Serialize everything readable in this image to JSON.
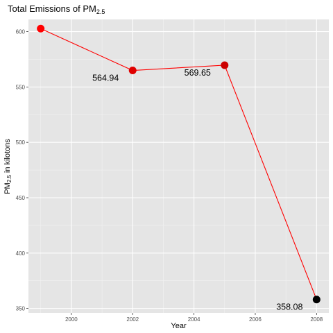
{
  "chart_data": {
    "type": "line",
    "title": "Total Emissions of PM",
    "title_subscript": "2.5",
    "xlabel": "Year",
    "ylabel": "PM",
    "ylabel_subscript": "2.5",
    "ylabel_suffix": " in kilotons",
    "xlim": [
      1998.6,
      2008.4
    ],
    "ylim": [
      346,
      611
    ],
    "x_ticks": [
      2000,
      2002,
      2004,
      2006,
      2008
    ],
    "y_ticks": [
      350,
      400,
      450,
      500,
      550,
      600
    ],
    "x": [
      1999,
      2002,
      2005,
      2008
    ],
    "values": [
      602.7,
      564.94,
      569.65,
      358.08
    ],
    "point_colors": [
      "#ff0000",
      "#e00000",
      "#cc0000",
      "#000000"
    ],
    "line_color": "#ff0000",
    "data_labels": [
      {
        "x": 2002,
        "text": "564.94"
      },
      {
        "x": 2005,
        "text": "569.65"
      },
      {
        "x": 2008,
        "text": "358.08"
      }
    ],
    "panel_background": "#e5e5e5",
    "grid": true,
    "legend": "none"
  }
}
